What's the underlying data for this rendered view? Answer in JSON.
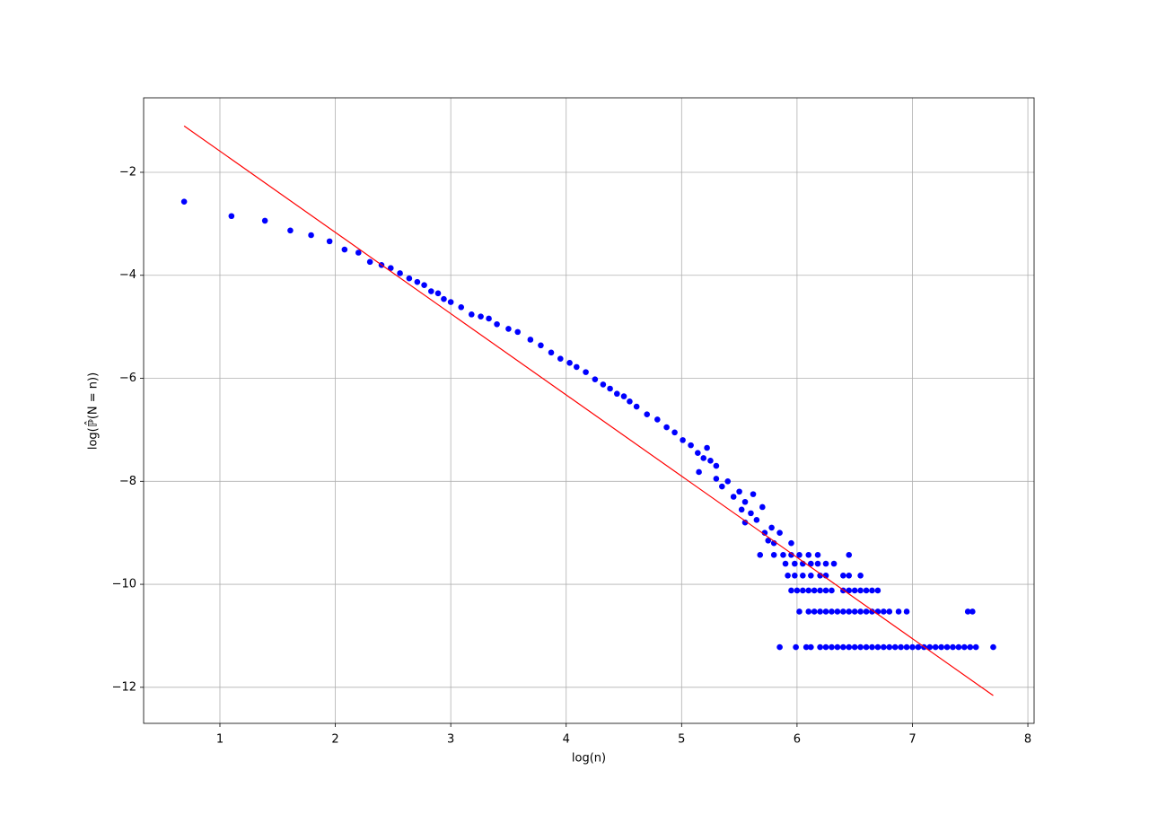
{
  "chart_data": {
    "type": "scatter",
    "x_label": "log(n)",
    "y_label": "log(ℙ̂(N = n))",
    "xlim": [
      0.339,
      8.054
    ],
    "ylim": [
      -12.7,
      -0.554
    ],
    "xticks": [
      1,
      2,
      3,
      4,
      5,
      6,
      7,
      8
    ],
    "yticks": [
      {
        "value": -2,
        "label": "−2"
      },
      {
        "value": -4,
        "label": "−4"
      },
      {
        "value": -6,
        "label": "−6"
      },
      {
        "value": -8,
        "label": "−8"
      },
      {
        "value": -10,
        "label": "−10"
      },
      {
        "value": -12,
        "label": "−12"
      }
    ],
    "grid": true,
    "series": [
      {
        "color": "#0000ff",
        "x": [
          0.69,
          1.1,
          1.39,
          1.61,
          1.79,
          1.95,
          2.08,
          2.2,
          2.3,
          2.4,
          2.48,
          2.56,
          2.64,
          2.71,
          2.77,
          2.83,
          2.89,
          2.94,
          3.0,
          3.09,
          3.18,
          3.26,
          3.33,
          3.4,
          3.5,
          3.58,
          3.69,
          3.78,
          3.87,
          3.95,
          4.03,
          4.09,
          4.17,
          4.25,
          4.32,
          4.38,
          4.44,
          4.5,
          4.55,
          4.61,
          4.7,
          4.79,
          4.87,
          4.94,
          5.01,
          5.08,
          5.14,
          5.19,
          5.25,
          5.3,
          5.15,
          5.22,
          5.3,
          5.35,
          5.4,
          5.45,
          5.5,
          5.52,
          5.55,
          5.6,
          5.62,
          5.65,
          5.7,
          5.72,
          5.75,
          5.78,
          5.8,
          5.85,
          5.95,
          5.55
        ],
        "values": [
          -2.57,
          -2.85,
          -2.94,
          -3.13,
          -3.22,
          -3.34,
          -3.5,
          -3.56,
          -3.74,
          -3.8,
          -3.86,
          -3.96,
          -4.06,
          -4.13,
          -4.19,
          -4.31,
          -4.35,
          -4.46,
          -4.52,
          -4.62,
          -4.76,
          -4.8,
          -4.84,
          -4.95,
          -5.04,
          -5.1,
          -5.25,
          -5.36,
          -5.5,
          -5.62,
          -5.7,
          -5.78,
          -5.88,
          -6.02,
          -6.12,
          -6.2,
          -6.3,
          -6.35,
          -6.45,
          -6.55,
          -6.7,
          -6.8,
          -6.95,
          -7.05,
          -7.2,
          -7.3,
          -7.45,
          -7.55,
          -7.6,
          -7.7,
          -7.82,
          -7.35,
          -7.95,
          -8.1,
          -8.0,
          -8.3,
          -8.2,
          -8.55,
          -8.4,
          -8.62,
          -8.25,
          -8.75,
          -8.5,
          -9.0,
          -9.15,
          -8.9,
          -9.2,
          -9.0,
          -9.2,
          -8.8
        ]
      },
      {
        "color": "#0000ff",
        "x": [
          5.85,
          5.99,
          6.08,
          6.12,
          6.2,
          6.25,
          6.3,
          6.35,
          6.4,
          6.45,
          6.5,
          6.55,
          6.6,
          6.65,
          6.7,
          6.75,
          6.8,
          6.85,
          6.9,
          6.95,
          7.0,
          7.05,
          7.1,
          7.15,
          7.2,
          7.25,
          7.3,
          7.35,
          7.4,
          7.45,
          7.5,
          7.55,
          7.7
        ],
        "values": [
          -11.22,
          -11.22,
          -11.22,
          -11.22,
          -11.22,
          -11.22,
          -11.22,
          -11.22,
          -11.22,
          -11.22,
          -11.22,
          -11.22,
          -11.22,
          -11.22,
          -11.22,
          -11.22,
          -11.22,
          -11.22,
          -11.22,
          -11.22,
          -11.22,
          -11.22,
          -11.22,
          -11.22,
          -11.22,
          -11.22,
          -11.22,
          -11.22,
          -11.22,
          -11.22,
          -11.22,
          -11.22,
          -11.22
        ]
      },
      {
        "color": "#0000ff",
        "x": [
          6.02,
          6.1,
          6.15,
          6.2,
          6.25,
          6.3,
          6.35,
          6.4,
          6.45,
          6.5,
          6.55,
          6.6,
          6.65,
          6.7,
          6.75,
          6.8,
          6.88,
          6.95,
          7.48,
          7.52
        ],
        "values": [
          -10.53,
          -10.53,
          -10.53,
          -10.53,
          -10.53,
          -10.53,
          -10.53,
          -10.53,
          -10.53,
          -10.53,
          -10.53,
          -10.53,
          -10.53,
          -10.53,
          -10.53,
          -10.53,
          -10.53,
          -10.53,
          -10.53,
          -10.53
        ]
      },
      {
        "color": "#0000ff",
        "x": [
          5.95,
          6.0,
          6.05,
          6.1,
          6.15,
          6.2,
          6.25,
          6.3,
          6.4,
          6.45,
          6.5,
          6.55,
          6.6,
          6.65,
          6.7
        ],
        "values": [
          -10.12,
          -10.12,
          -10.12,
          -10.12,
          -10.12,
          -10.12,
          -10.12,
          -10.12,
          -10.12,
          -10.12,
          -10.12,
          -10.12,
          -10.12,
          -10.12,
          -10.12
        ]
      },
      {
        "color": "#0000ff",
        "x": [
          5.92,
          5.98,
          6.05,
          6.12,
          6.2,
          6.25,
          6.4,
          6.45,
          6.55
        ],
        "values": [
          -9.83,
          -9.83,
          -9.83,
          -9.83,
          -9.83,
          -9.83,
          -9.83,
          -9.83,
          -9.83
        ]
      },
      {
        "color": "#0000ff",
        "x": [
          5.9,
          5.98,
          6.05,
          6.12,
          6.18,
          6.25,
          6.32
        ],
        "values": [
          -9.6,
          -9.6,
          -9.6,
          -9.6,
          -9.6,
          -9.6,
          -9.6
        ]
      },
      {
        "color": "#0000ff",
        "x": [
          5.68,
          5.8,
          5.88,
          5.95,
          6.02,
          6.1,
          6.18,
          6.45
        ],
        "values": [
          -9.43,
          -9.43,
          -9.43,
          -9.43,
          -9.43,
          -9.43,
          -9.43,
          -9.43
        ]
      },
      {
        "type": "line",
        "color": "#ff0000",
        "x": [
          0.69,
          7.7
        ],
        "values": [
          -1.1,
          -12.16
        ]
      }
    ]
  }
}
